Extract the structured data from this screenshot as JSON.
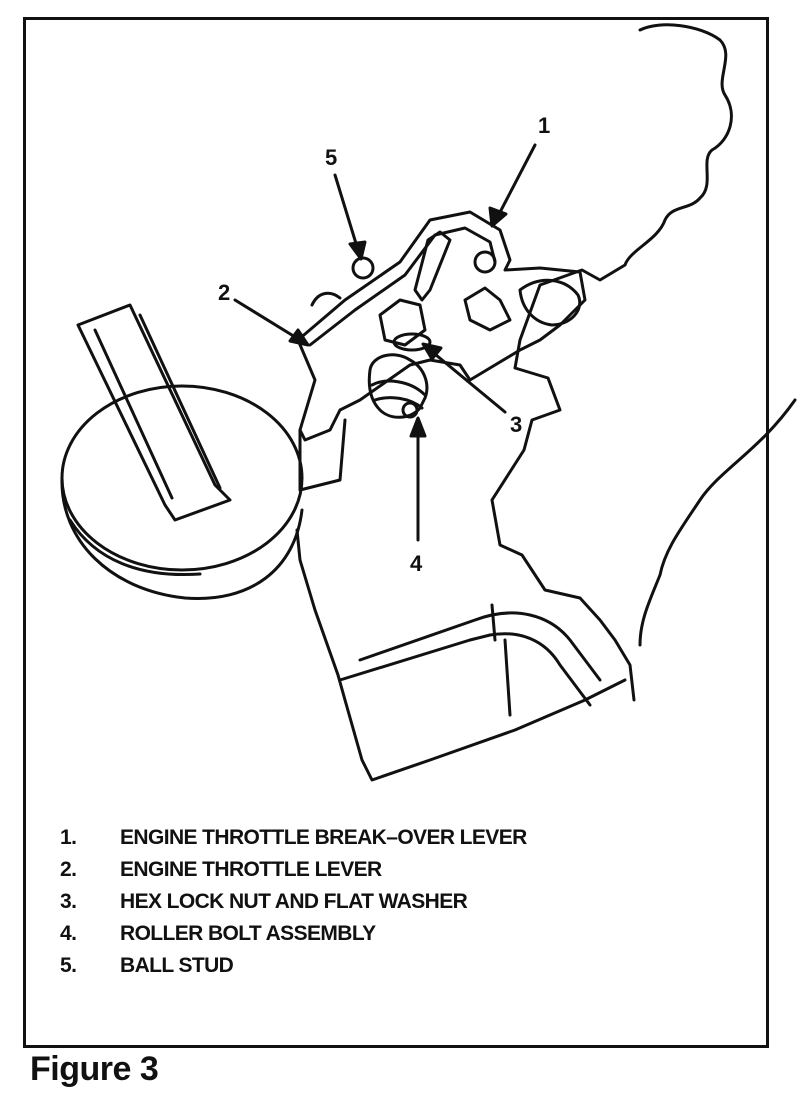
{
  "callouts": [
    "1",
    "2",
    "3",
    "4",
    "5"
  ],
  "legend": [
    {
      "num": "1.",
      "text": "ENGINE THROTTLE BREAK–OVER LEVER"
    },
    {
      "num": "2.",
      "text": "ENGINE THROTTLE LEVER"
    },
    {
      "num": "3.",
      "text": "HEX LOCK NUT AND FLAT WASHER"
    },
    {
      "num": "4.",
      "text": "ROLLER BOLT ASSEMBLY"
    },
    {
      "num": "5.",
      "text": "BALL STUD"
    }
  ],
  "figure_title": "Figure 3"
}
